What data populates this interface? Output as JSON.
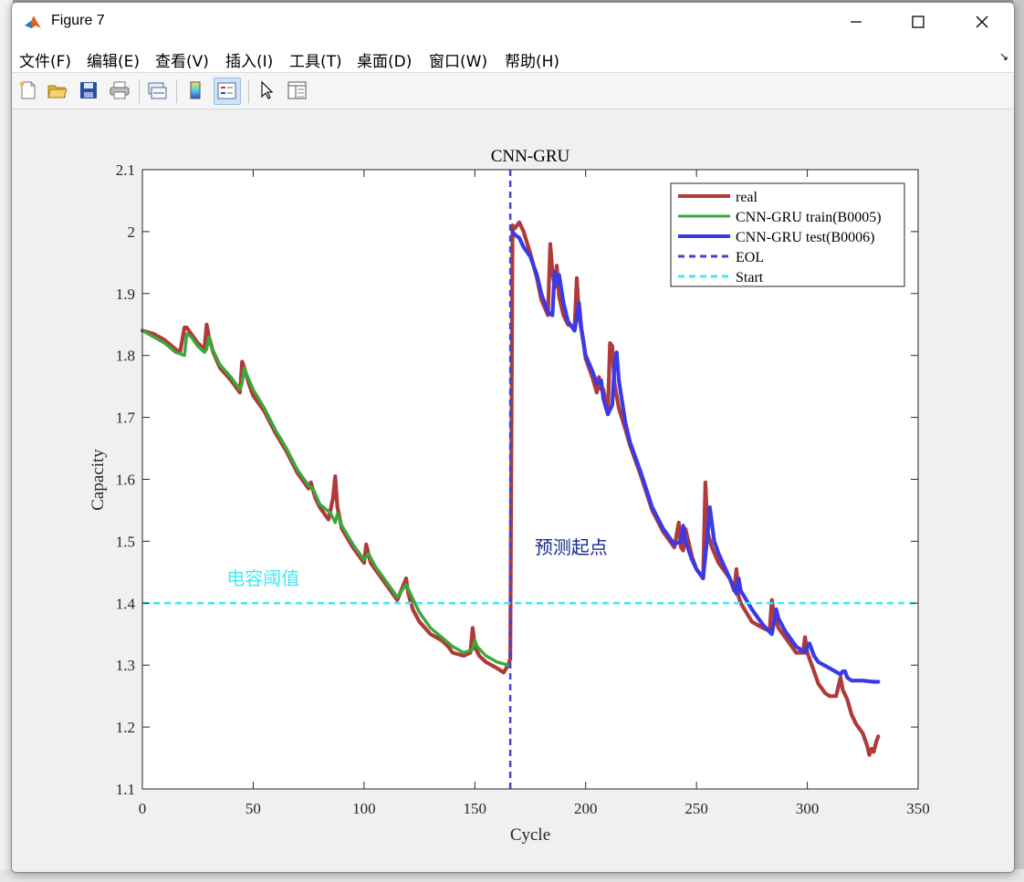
{
  "window": {
    "title": "Figure 7",
    "menu": [
      "文件(F)",
      "编辑(E)",
      "查看(V)",
      "插入(I)",
      "工具(T)",
      "桌面(D)",
      "窗口(W)",
      "帮助(H)"
    ]
  },
  "toolbar": {
    "buttons": [
      "new-figure-icon",
      "open-file-icon",
      "save-icon",
      "print-icon",
      "link-plot-icon",
      "colorbar-icon",
      "legend-icon",
      "pointer-icon",
      "property-inspector-icon"
    ]
  },
  "colors": {
    "real": "#b03a3a",
    "train": "#3aa83a",
    "test": "#3a3ae8",
    "eol": "#4444cc",
    "start": "#44e8f0"
  },
  "chart_data": {
    "type": "line",
    "title": "CNN-GRU",
    "xlabel": "Cycle",
    "ylabel": "Capacity",
    "xlim": [
      0,
      350
    ],
    "ylim": [
      1.1,
      2.1
    ],
    "xticks": [
      0,
      50,
      100,
      150,
      200,
      250,
      300,
      350
    ],
    "yticks": [
      1.1,
      1.2,
      1.3,
      1.4,
      1.5,
      1.6,
      1.7,
      1.8,
      1.9,
      2.0,
      2.1
    ],
    "legend_position": "top-right",
    "legend": [
      "real",
      "CNN-GRU train(B0005)",
      "CNN-GRU test(B0006)",
      "EOL",
      "Start"
    ],
    "annotations": [
      {
        "text": "电容阈值",
        "x": 38,
        "y": 1.43,
        "color": "#44e8f0"
      },
      {
        "text": "预测起点",
        "x": 177,
        "y": 1.48,
        "color": "#1a2a8a"
      }
    ],
    "series": [
      {
        "name": "real",
        "x": [
          0,
          5,
          10,
          15,
          17,
          19,
          20,
          22,
          25,
          28,
          29,
          30,
          32,
          35,
          40,
          44,
          45,
          46,
          48,
          50,
          55,
          60,
          65,
          70,
          75,
          76,
          78,
          80,
          82,
          84,
          86,
          87,
          88,
          90,
          95,
          100,
          101,
          103,
          105,
          110,
          115,
          119,
          120,
          122,
          125,
          130,
          135,
          138,
          140,
          145,
          148,
          149,
          150,
          152,
          155,
          160,
          163,
          165,
          166,
          167,
          168,
          170,
          172
        ],
        "y": [
          1.84,
          1.835,
          1.825,
          1.81,
          1.805,
          1.845,
          1.845,
          1.835,
          1.82,
          1.81,
          1.85,
          1.83,
          1.805,
          1.78,
          1.76,
          1.74,
          1.79,
          1.78,
          1.755,
          1.735,
          1.71,
          1.675,
          1.645,
          1.61,
          1.585,
          1.595,
          1.57,
          1.555,
          1.545,
          1.535,
          1.57,
          1.605,
          1.555,
          1.52,
          1.49,
          1.465,
          1.495,
          1.465,
          1.455,
          1.43,
          1.405,
          1.44,
          1.415,
          1.39,
          1.37,
          1.35,
          1.34,
          1.33,
          1.32,
          1.315,
          1.32,
          1.36,
          1.33,
          1.315,
          1.305,
          1.295,
          1.288,
          1.3,
          1.31,
          2.01,
          2.005,
          2.015,
          2.0
        ]
      },
      {
        "name": "real",
        "x": [
          172,
          175,
          178,
          180,
          183,
          184,
          185,
          186,
          187,
          188,
          190,
          192,
          195,
          196,
          197,
          199,
          200,
          203,
          205,
          206,
          207,
          208,
          210,
          211,
          212,
          213,
          215,
          218,
          220,
          225,
          230,
          235,
          240,
          242,
          243,
          244,
          245,
          248,
          250,
          252,
          253,
          254,
          255,
          257,
          260,
          265,
          267,
          268,
          269,
          270,
          275,
          280,
          283,
          284,
          285,
          287,
          290,
          295,
          298,
          299,
          300,
          303,
          305,
          308,
          310,
          313,
          315,
          316,
          318,
          320,
          322,
          325,
          327,
          328,
          329,
          330,
          331,
          332
        ],
        "y": [
          2.0,
          1.965,
          1.925,
          1.89,
          1.865,
          1.98,
          1.935,
          1.91,
          1.945,
          1.895,
          1.865,
          1.85,
          1.845,
          1.925,
          1.865,
          1.82,
          1.795,
          1.765,
          1.74,
          1.765,
          1.745,
          1.745,
          1.705,
          1.82,
          1.815,
          1.755,
          1.715,
          1.68,
          1.655,
          1.605,
          1.55,
          1.515,
          1.49,
          1.53,
          1.49,
          1.485,
          1.52,
          1.475,
          1.455,
          1.445,
          1.44,
          1.595,
          1.515,
          1.49,
          1.465,
          1.44,
          1.42,
          1.455,
          1.41,
          1.4,
          1.37,
          1.36,
          1.355,
          1.405,
          1.38,
          1.36,
          1.345,
          1.32,
          1.32,
          1.345,
          1.32,
          1.29,
          1.27,
          1.255,
          1.25,
          1.25,
          1.28,
          1.26,
          1.245,
          1.22,
          1.205,
          1.19,
          1.17,
          1.155,
          1.165,
          1.16,
          1.175,
          1.185
        ]
      },
      {
        "name": "CNN-GRU train(B0005)",
        "x": [
          0,
          5,
          10,
          15,
          19,
          20,
          22,
          25,
          28,
          29,
          30,
          31,
          35,
          40,
          44,
          45,
          46,
          47,
          50,
          55,
          60,
          65,
          70,
          75,
          77,
          80,
          85,
          87,
          88,
          90,
          95,
          100,
          102,
          105,
          110,
          115,
          119,
          121,
          125,
          130,
          135,
          140,
          145,
          149,
          150,
          151,
          155,
          160,
          165
        ],
        "y": [
          1.84,
          1.83,
          1.82,
          1.805,
          1.8,
          1.835,
          1.83,
          1.815,
          1.805,
          1.81,
          1.83,
          1.815,
          1.785,
          1.765,
          1.745,
          1.755,
          1.78,
          1.77,
          1.745,
          1.715,
          1.68,
          1.65,
          1.615,
          1.59,
          1.585,
          1.56,
          1.545,
          1.53,
          1.545,
          1.525,
          1.495,
          1.47,
          1.48,
          1.46,
          1.435,
          1.41,
          1.43,
          1.415,
          1.385,
          1.36,
          1.345,
          1.33,
          1.32,
          1.325,
          1.34,
          1.33,
          1.315,
          1.305,
          1.3
        ]
      },
      {
        "name": "CNN-GRU test(B0006)",
        "x": [
          167,
          168,
          170,
          172,
          175,
          178,
          180,
          183,
          185,
          186,
          187,
          188,
          190,
          192,
          195,
          197,
          198,
          200,
          203,
          205,
          207,
          208,
          210,
          212,
          213,
          214,
          215,
          218,
          220,
          225,
          230,
          235,
          240,
          243,
          244,
          245,
          248,
          250,
          253,
          255,
          256,
          258,
          260,
          265,
          268,
          269,
          270,
          275,
          280,
          284,
          286,
          287,
          290,
          295,
          299,
          300,
          301,
          303,
          305,
          310,
          315,
          316,
          317,
          318,
          320,
          325,
          330,
          332
        ],
        "y": [
          2.0,
          1.995,
          1.99,
          1.975,
          1.96,
          1.93,
          1.9,
          1.87,
          1.865,
          1.935,
          1.915,
          1.93,
          1.885,
          1.855,
          1.84,
          1.885,
          1.845,
          1.8,
          1.775,
          1.755,
          1.76,
          1.73,
          1.705,
          1.72,
          1.785,
          1.805,
          1.76,
          1.69,
          1.66,
          1.61,
          1.555,
          1.52,
          1.495,
          1.5,
          1.525,
          1.5,
          1.47,
          1.455,
          1.44,
          1.51,
          1.555,
          1.5,
          1.48,
          1.44,
          1.415,
          1.44,
          1.42,
          1.39,
          1.365,
          1.35,
          1.39,
          1.375,
          1.355,
          1.33,
          1.32,
          1.33,
          1.335,
          1.315,
          1.305,
          1.295,
          1.285,
          1.29,
          1.29,
          1.28,
          1.275,
          1.275,
          1.273,
          1.273
        ]
      },
      {
        "name": "EOL",
        "x": [
          166,
          166
        ],
        "y": [
          1.1,
          2.1
        ]
      },
      {
        "name": "Start",
        "x": [
          0,
          350
        ],
        "y": [
          1.4,
          1.4
        ]
      }
    ]
  }
}
